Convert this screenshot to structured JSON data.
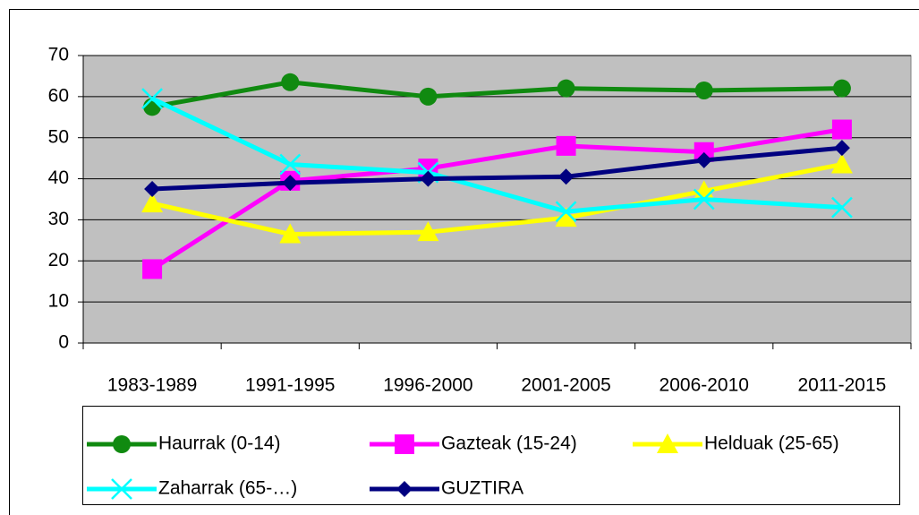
{
  "chart_data": {
    "type": "line",
    "categories": [
      "1983-1989",
      "1991-1995",
      "1996-2000",
      "2001-2005",
      "2006-2010",
      "2011-2015"
    ],
    "series": [
      {
        "name": "Haurrak (0-14)",
        "color": "#108a10",
        "marker": "circle",
        "values": [
          57.5,
          63.5,
          60,
          62,
          61.5,
          62
        ]
      },
      {
        "name": "Gazteak (15-24)",
        "color": "#ff00ff",
        "marker": "square",
        "values": [
          18,
          39.5,
          42.5,
          48,
          46.5,
          52
        ]
      },
      {
        "name": "Helduak (25-65)",
        "color": "#ffff00",
        "marker": "triangle",
        "values": [
          34,
          26.5,
          27,
          30.5,
          37,
          43.5
        ]
      },
      {
        "name": "Zaharrak (65-…)",
        "color": "#00ffff",
        "marker": "x",
        "values": [
          59.5,
          43.5,
          41.5,
          32,
          35,
          33
        ]
      },
      {
        "name": "GUZTIRA",
        "color": "#000080",
        "marker": "diamond",
        "values": [
          37.5,
          39,
          40,
          40.5,
          44.5,
          47.5
        ]
      }
    ],
    "ylim": [
      0,
      70
    ],
    "yticks": [
      0,
      10,
      20,
      30,
      40,
      50,
      60,
      70
    ],
    "grid": true,
    "legend": "bottom"
  }
}
